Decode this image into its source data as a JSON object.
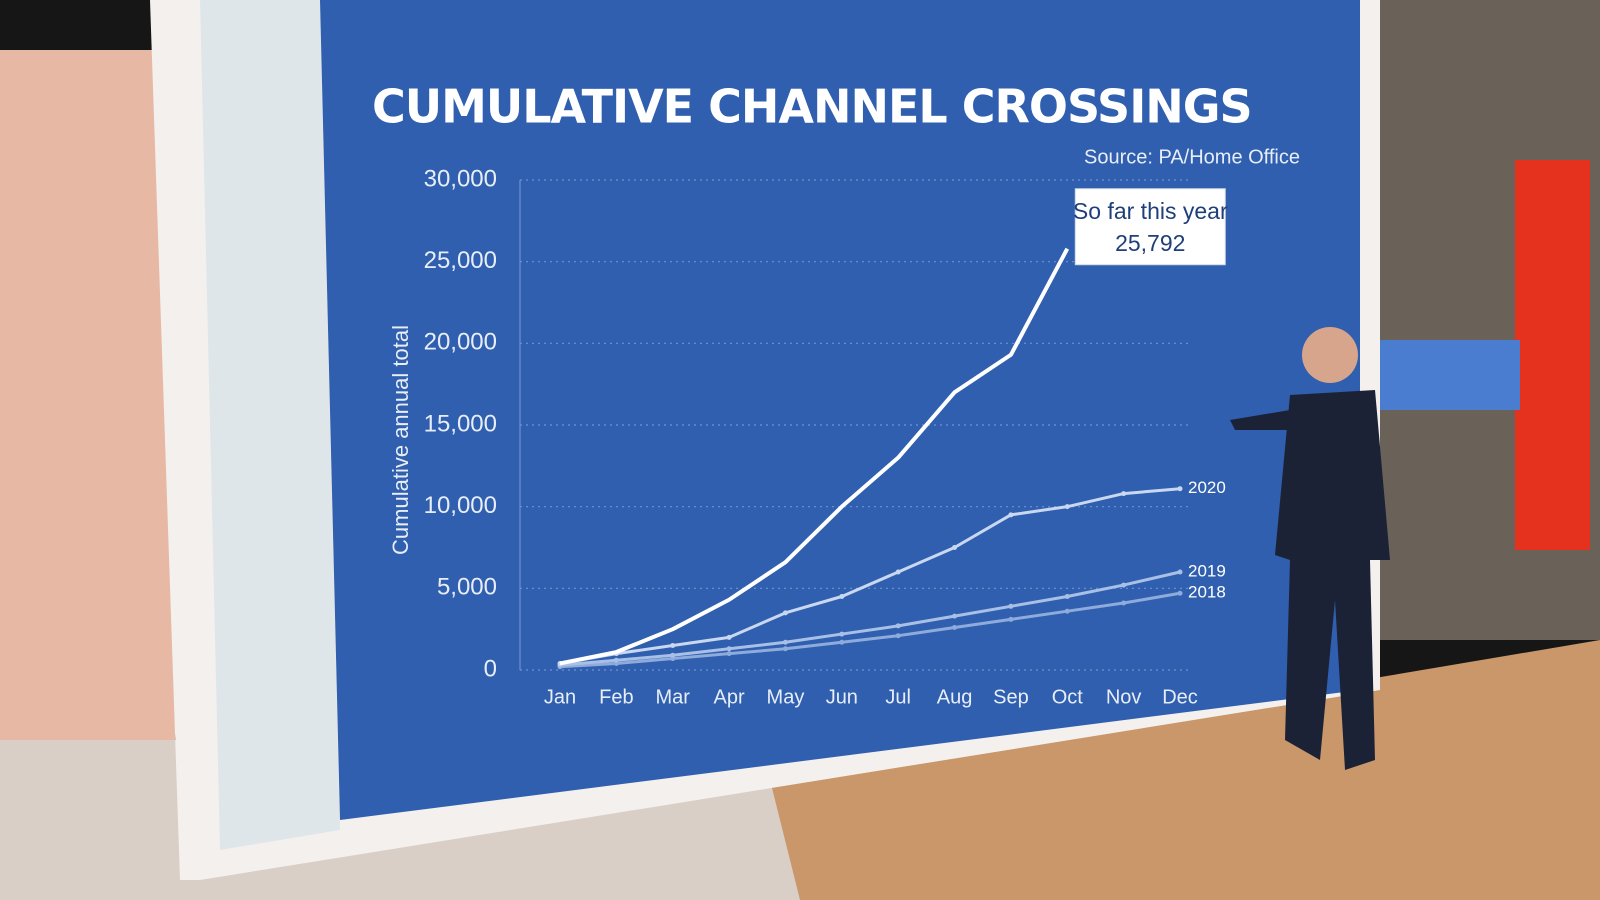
{
  "chart_data": {
    "type": "line",
    "title": "CUMULATIVE CHANNEL CROSSINGS",
    "source": "Source: PA/Home Office",
    "y_label": "Cumulative annual total",
    "categories": [
      "Jan",
      "Feb",
      "Mar",
      "Apr",
      "May",
      "Jun",
      "Jul",
      "Aug",
      "Sep",
      "Oct",
      "Nov",
      "Dec"
    ],
    "series": [
      {
        "name": "So far this year",
        "color": "#ffffff",
        "values": [
          400,
          1100,
          2500,
          4300,
          6600,
          10000,
          13000,
          17000,
          19300,
          25792,
          null,
          null
        ],
        "value_labels": [
          null,
          null,
          null,
          null,
          null,
          null,
          null,
          null,
          null,
          "25,792",
          null,
          null
        ]
      },
      {
        "name": "2020",
        "color": "#c9d8f0",
        "values": [
          400,
          1000,
          1500,
          2000,
          3500,
          4500,
          6000,
          7500,
          9500,
          10000,
          10800,
          11100
        ]
      },
      {
        "name": "2019",
        "color": "#a9c0e6",
        "values": [
          300,
          600,
          900,
          1300,
          1700,
          2200,
          2700,
          3300,
          3900,
          4500,
          5200,
          6000
        ]
      },
      {
        "name": "2018",
        "color": "#8eabdc",
        "values": [
          200,
          400,
          700,
          1000,
          1300,
          1700,
          2100,
          2600,
          3100,
          3600,
          4100,
          4700
        ]
      }
    ],
    "ylim": [
      0,
      30000
    ],
    "yticks": [
      0,
      {
        "value": 5000,
        "label": "5,000"
      },
      {
        "value": 10000,
        "label": "10,000"
      },
      {
        "value": 15000,
        "label": "15,000"
      },
      {
        "value": 20000,
        "label": "20,000"
      },
      {
        "value": 25000,
        "label": "25,000"
      },
      {
        "value": 30000,
        "label": "30,000"
      }
    ],
    "grid": true
  }
}
